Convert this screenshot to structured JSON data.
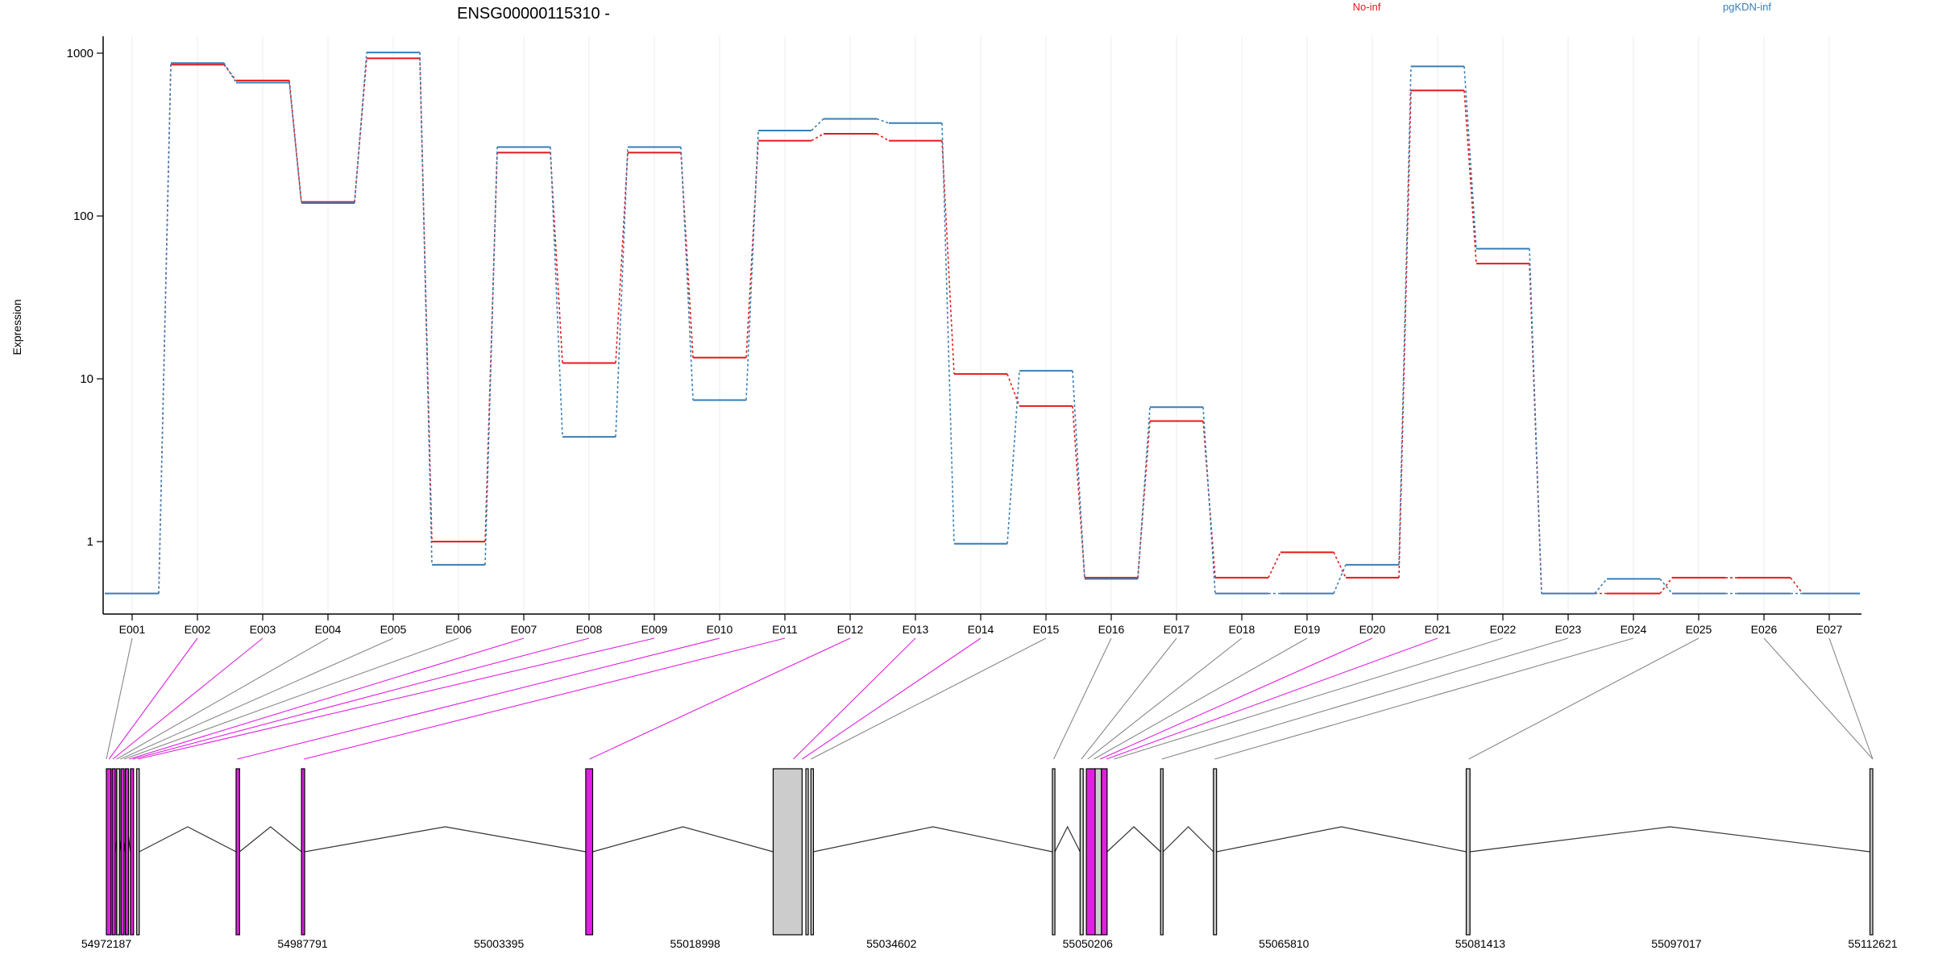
{
  "chart_data": {
    "type": "line",
    "title": "ENSG00000115310 -",
    "ylabel": "Expression",
    "yscale": "log",
    "ylim": [
      0.38,
      1200
    ],
    "yticks": [
      1,
      10,
      100,
      1000
    ],
    "ytick_labels": [
      "1",
      "10",
      "100",
      "1000"
    ],
    "categories": [
      "E001",
      "E002",
      "E003",
      "E004",
      "E005",
      "E006",
      "E007",
      "E008",
      "E009",
      "E010",
      "E011",
      "E012",
      "E013",
      "E014",
      "E015",
      "E016",
      "E017",
      "E018",
      "E019",
      "E020",
      "E021",
      "E022",
      "E023",
      "E024",
      "E025",
      "E026",
      "E027"
    ],
    "series": [
      {
        "name": "No-inf",
        "color": "#e41a1c",
        "values": [
          0.48,
          850,
          680,
          122,
          930,
          1.0,
          245,
          12.5,
          245,
          13.5,
          290,
          320,
          290,
          10.7,
          6.8,
          0.6,
          5.5,
          0.6,
          0.86,
          0.6,
          590,
          51,
          0.48,
          0.48,
          0.6,
          0.6,
          0.48
        ]
      },
      {
        "name": "pgKDN-inf",
        "color": "#377eb8",
        "values": [
          0.48,
          870,
          660,
          120,
          1010,
          0.72,
          265,
          4.4,
          265,
          7.4,
          335,
          395,
          372,
          0.97,
          11.2,
          0.59,
          6.7,
          0.48,
          0.48,
          0.72,
          830,
          63,
          0.48,
          0.59,
          0.48,
          0.48,
          0.48
        ]
      }
    ],
    "gene_model": {
      "coordinate_labels": [
        "54972187",
        "54987791",
        "55003395",
        "55018998",
        "55034602",
        "55050206",
        "55065810",
        "55081413",
        "55097017",
        "55112621"
      ],
      "range": [
        54972187,
        55112621
      ],
      "exon_positions": [
        54972187,
        54972400,
        54972700,
        54973000,
        54973300,
        54973600,
        54974000,
        54974300,
        54974700,
        54982600,
        54987900,
        55010600,
        55026800,
        55027500,
        55028200,
        55047500,
        55049700,
        55050200,
        55050700,
        55051200,
        55051700,
        55052300,
        55056100,
        55060300,
        55080500,
        55112621,
        55112621
      ],
      "highlight_color": "#e020e0",
      "default_color": "#888888",
      "highlighted_exons": [
        "E002",
        "E003",
        "E007",
        "E008",
        "E009",
        "E010",
        "E011",
        "E012",
        "E013",
        "E014",
        "E020",
        "E021"
      ],
      "blocks": [
        {
          "start": 54972187,
          "end": 54972550,
          "fill": "#e020e0"
        },
        {
          "start": 54972650,
          "end": 54972900,
          "fill": "#e020e0"
        },
        {
          "start": 54973000,
          "end": 54973250,
          "fill": "#cccccc"
        },
        {
          "start": 54973350,
          "end": 54973600,
          "fill": "#e020e0"
        },
        {
          "start": 54973700,
          "end": 54973950,
          "fill": "#e020e0"
        },
        {
          "start": 54974100,
          "end": 54974350,
          "fill": "#e020e0"
        },
        {
          "start": 54974600,
          "end": 54974800,
          "fill": "#cccccc"
        },
        {
          "start": 54982500,
          "end": 54982780,
          "fill": "#e020e0"
        },
        {
          "start": 54987700,
          "end": 54987950,
          "fill": "#e020e0"
        },
        {
          "start": 55010300,
          "end": 55010850,
          "fill": "#e020e0"
        },
        {
          "start": 55025200,
          "end": 55027500,
          "fill": "#cccccc"
        },
        {
          "start": 55027800,
          "end": 55027950,
          "fill": "#cccccc"
        },
        {
          "start": 55028200,
          "end": 55028400,
          "fill": "#cccccc"
        },
        {
          "start": 55047400,
          "end": 55047600,
          "fill": "#cccccc"
        },
        {
          "start": 55049600,
          "end": 55049850,
          "fill": "#cccccc"
        },
        {
          "start": 55050100,
          "end": 55050800,
          "fill": "#e020e0"
        },
        {
          "start": 55050800,
          "end": 55051300,
          "fill": "#cccccc"
        },
        {
          "start": 55051300,
          "end": 55051750,
          "fill": "#e020e0"
        },
        {
          "start": 55056000,
          "end": 55056200,
          "fill": "#cccccc"
        },
        {
          "start": 55060200,
          "end": 55060450,
          "fill": "#cccccc"
        },
        {
          "start": 55080300,
          "end": 55080600,
          "fill": "#cccccc"
        },
        {
          "start": 55112400,
          "end": 55112621,
          "fill": "#cccccc"
        }
      ],
      "introns": [
        [
          54974800,
          54982500
        ],
        [
          54982780,
          54987700
        ],
        [
          54987950,
          55010300
        ],
        [
          55010850,
          55025200
        ],
        [
          55028400,
          55047400
        ],
        [
          55047600,
          55049600
        ],
        [
          55051750,
          55056000
        ],
        [
          55056200,
          55060200
        ],
        [
          55060450,
          55080300
        ],
        [
          55080600,
          55112400
        ],
        [
          54972900,
          54973350
        ],
        [
          54973600,
          54974100
        ]
      ]
    }
  }
}
